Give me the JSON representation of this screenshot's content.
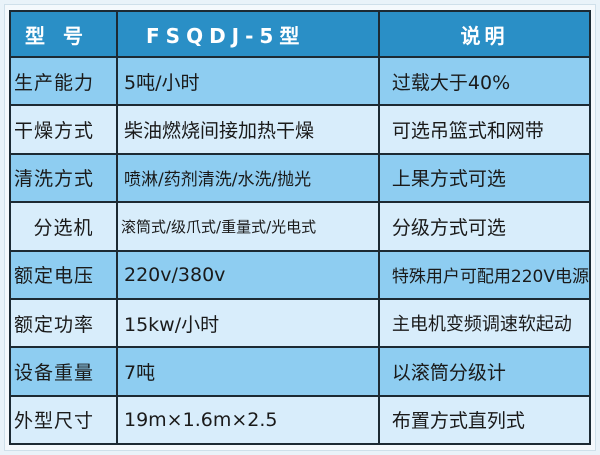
{
  "header": {
    "col1": "型号",
    "col2": "FSQDJ-5型",
    "col3": "说明"
  },
  "rows": [
    {
      "label": "生产能力",
      "value": "5吨/小时",
      "note": "过载大于40%"
    },
    {
      "label": "干燥方式",
      "value": "柴油燃烧间接加热干燥",
      "note": "可选吊篮式和网带"
    },
    {
      "label": "清洗方式",
      "value": "喷淋/药剂清洗/水洗/抛光",
      "note": "上果方式可选"
    },
    {
      "label": "分选机",
      "value": "滚筒式/级爪式/重量式/光电式",
      "note": "分级方式可选"
    },
    {
      "label": "额定电压",
      "value": "220v/380v",
      "note": "特殊用户可配用220V电源"
    },
    {
      "label": "额定功率",
      "value": "15kw/小时",
      "note": "主电机变频调速软起动"
    },
    {
      "label": "设备重量",
      "value": "7吨",
      "note": "以滚筒分级计"
    },
    {
      "label": "外型尺寸",
      "value": "19m×1.6m×2.5",
      "note": "布置方式直列式"
    }
  ],
  "colors": {
    "header": "#2a8fc6",
    "row_mid": "#8ecdf1",
    "row_light": "#d8edfb",
    "border": "#1c2a33"
  }
}
